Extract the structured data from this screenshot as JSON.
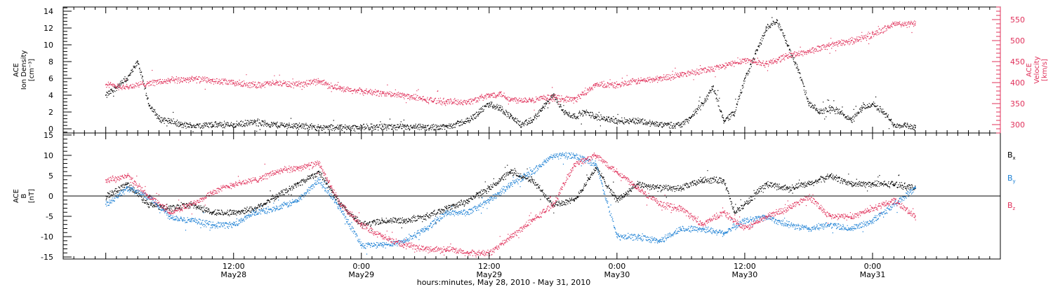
{
  "chart_data": {
    "type": "scatter",
    "x_label": "hours:minutes, May 28, 2010 - May 31, 2010",
    "x_ticks": [
      {
        "t": 12,
        "time": "12:00",
        "day": "May28"
      },
      {
        "t": 24,
        "time": "0:00",
        "day": "May29"
      },
      {
        "t": 36,
        "time": "12:00",
        "day": "May29"
      },
      {
        "t": 48,
        "time": "0:00",
        "day": "May30"
      },
      {
        "t": 60,
        "time": "12:00",
        "day": "May30"
      },
      {
        "t": 72,
        "time": "0:00",
        "day": "May31"
      }
    ],
    "panels": [
      {
        "id": "top",
        "left_axis": {
          "label_lines": [
            "ACE",
            "Ion Density",
            "[cm⁻³]"
          ],
          "range": [
            -0.5,
            14.5
          ],
          "ticks": [
            0,
            2,
            4,
            6,
            8,
            10,
            12,
            14
          ]
        },
        "right_axis": {
          "label_lines": [
            "ACE",
            "Velocity",
            "[km/s]"
          ],
          "range": [
            280,
            580
          ],
          "ticks": [
            300,
            350,
            400,
            450,
            500,
            550
          ],
          "color": "#e0305a"
        },
        "series": [
          {
            "name": "Ion Density",
            "color": "#000000",
            "axis": "left",
            "points": [
              [
                0,
                4
              ],
              [
                1,
                5
              ],
              [
                2,
                6
              ],
              [
                3,
                8
              ],
              [
                4,
                3
              ],
              [
                5,
                1.2
              ],
              [
                6,
                1
              ],
              [
                7,
                0.5
              ],
              [
                8,
                0.4
              ],
              [
                10,
                0.5
              ],
              [
                12,
                0.5
              ],
              [
                14,
                0.8
              ],
              [
                16,
                0.5
              ],
              [
                18,
                0.4
              ],
              [
                20,
                0.2
              ],
              [
                22,
                0.2
              ],
              [
                24,
                0.2
              ],
              [
                26,
                0.3
              ],
              [
                28,
                0.2
              ],
              [
                30,
                0.2
              ],
              [
                32,
                0.3
              ],
              [
                34,
                1
              ],
              [
                35,
                2
              ],
              [
                36,
                3
              ],
              [
                37,
                2.5
              ],
              [
                38,
                1.5
              ],
              [
                39,
                0.5
              ],
              [
                40,
                1
              ],
              [
                41,
                2.5
              ],
              [
                42,
                4
              ],
              [
                43,
                2
              ],
              [
                44,
                1.5
              ],
              [
                45,
                2
              ],
              [
                46,
                1.5
              ],
              [
                47,
                1.2
              ],
              [
                48,
                1
              ],
              [
                50,
                1
              ],
              [
                52,
                0.5
              ],
              [
                54,
                0.5
              ],
              [
                55,
                1.5
              ],
              [
                56,
                3
              ],
              [
                57,
                5
              ],
              [
                58,
                1
              ],
              [
                59,
                2
              ],
              [
                60,
                6
              ],
              [
                61,
                9
              ],
              [
                62,
                12
              ],
              [
                63,
                13
              ],
              [
                64,
                10
              ],
              [
                65,
                7
              ],
              [
                66,
                3
              ],
              [
                67,
                2
              ],
              [
                68,
                2.5
              ],
              [
                69,
                2
              ],
              [
                70,
                1
              ],
              [
                71,
                2.5
              ],
              [
                72,
                3
              ],
              [
                73,
                2
              ],
              [
                74,
                0.5
              ],
              [
                75,
                0.5
              ],
              [
                76,
                0.2
              ]
            ]
          },
          {
            "name": "Velocity",
            "color": "#e0305a",
            "axis": "right",
            "points": [
              [
                0,
                395
              ],
              [
                2,
                390
              ],
              [
                4,
                400
              ],
              [
                6,
                405
              ],
              [
                8,
                410
              ],
              [
                10,
                405
              ],
              [
                12,
                400
              ],
              [
                14,
                395
              ],
              [
                16,
                400
              ],
              [
                18,
                395
              ],
              [
                20,
                405
              ],
              [
                22,
                385
              ],
              [
                24,
                380
              ],
              [
                26,
                375
              ],
              [
                28,
                370
              ],
              [
                30,
                360
              ],
              [
                32,
                355
              ],
              [
                34,
                355
              ],
              [
                36,
                370
              ],
              [
                37,
                375
              ],
              [
                38,
                360
              ],
              [
                40,
                360
              ],
              [
                42,
                365
              ],
              [
                44,
                360
              ],
              [
                46,
                395
              ],
              [
                48,
                395
              ],
              [
                50,
                405
              ],
              [
                52,
                410
              ],
              [
                54,
                420
              ],
              [
                56,
                430
              ],
              [
                58,
                440
              ],
              [
                60,
                455
              ],
              [
                62,
                445
              ],
              [
                64,
                465
              ],
              [
                66,
                475
              ],
              [
                68,
                490
              ],
              [
                70,
                500
              ],
              [
                72,
                515
              ],
              [
                74,
                540
              ],
              [
                76,
                540
              ]
            ]
          }
        ]
      },
      {
        "id": "bottom",
        "left_axis": {
          "label_lines": [
            "ACE",
            "B",
            "[nT]"
          ],
          "range": [
            -15.5,
            15.5
          ],
          "ticks": [
            -15,
            -10,
            -5,
            0,
            5,
            10,
            15
          ]
        },
        "legend": [
          {
            "text": "B",
            "sub": "x",
            "color": "#000000"
          },
          {
            "text": "B",
            "sub": "y",
            "color": "#1a7fd4"
          },
          {
            "text": "B",
            "sub": "z",
            "color": "#e0305a"
          }
        ],
        "series": [
          {
            "name": "Bx",
            "color": "#000000",
            "points": [
              [
                0,
                0
              ],
              [
                2,
                3
              ],
              [
                4,
                -2
              ],
              [
                6,
                -3
              ],
              [
                8,
                -2
              ],
              [
                10,
                -4
              ],
              [
                12,
                -4
              ],
              [
                14,
                -3
              ],
              [
                16,
                0
              ],
              [
                18,
                3
              ],
              [
                20,
                6
              ],
              [
                22,
                -2
              ],
              [
                24,
                -7
              ],
              [
                26,
                -6
              ],
              [
                28,
                -6
              ],
              [
                30,
                -5
              ],
              [
                32,
                -3
              ],
              [
                34,
                -1
              ],
              [
                36,
                2
              ],
              [
                38,
                6
              ],
              [
                40,
                4
              ],
              [
                42,
                -2
              ],
              [
                44,
                -1
              ],
              [
                46,
                7
              ],
              [
                48,
                -1
              ],
              [
                50,
                3
              ],
              [
                52,
                2
              ],
              [
                54,
                2
              ],
              [
                56,
                4
              ],
              [
                58,
                4
              ],
              [
                59,
                -4
              ],
              [
                60,
                -2
              ],
              [
                62,
                3
              ],
              [
                64,
                2
              ],
              [
                66,
                3
              ],
              [
                68,
                5
              ],
              [
                70,
                3
              ],
              [
                72,
                3
              ],
              [
                74,
                3
              ],
              [
                76,
                2
              ]
            ]
          },
          {
            "name": "By",
            "color": "#1a7fd4",
            "points": [
              [
                0,
                -2
              ],
              [
                2,
                2
              ],
              [
                4,
                0
              ],
              [
                6,
                -5
              ],
              [
                8,
                -6
              ],
              [
                10,
                -7
              ],
              [
                12,
                -7
              ],
              [
                14,
                -4
              ],
              [
                16,
                -3
              ],
              [
                18,
                -1
              ],
              [
                20,
                4
              ],
              [
                22,
                -3
              ],
              [
                24,
                -12
              ],
              [
                26,
                -12
              ],
              [
                28,
                -11
              ],
              [
                30,
                -8
              ],
              [
                32,
                -4
              ],
              [
                34,
                -4
              ],
              [
                36,
                -1
              ],
              [
                38,
                3
              ],
              [
                40,
                6
              ],
              [
                42,
                10
              ],
              [
                44,
                10
              ],
              [
                46,
                8
              ],
              [
                48,
                -10
              ],
              [
                50,
                -10
              ],
              [
                52,
                -11
              ],
              [
                54,
                -8
              ],
              [
                56,
                -8
              ],
              [
                58,
                -9
              ],
              [
                60,
                -6
              ],
              [
                62,
                -5
              ],
              [
                64,
                -7
              ],
              [
                66,
                -8
              ],
              [
                68,
                -7
              ],
              [
                70,
                -8
              ],
              [
                72,
                -6
              ],
              [
                74,
                -2
              ],
              [
                76,
                2
              ]
            ]
          },
          {
            "name": "Bz",
            "color": "#e0305a",
            "points": [
              [
                0,
                4
              ],
              [
                2,
                5
              ],
              [
                4,
                0
              ],
              [
                6,
                -4
              ],
              [
                8,
                -2
              ],
              [
                10,
                1
              ],
              [
                12,
                3
              ],
              [
                14,
                4
              ],
              [
                16,
                6
              ],
              [
                18,
                7
              ],
              [
                20,
                8
              ],
              [
                22,
                -2
              ],
              [
                24,
                -7
              ],
              [
                26,
                -10
              ],
              [
                28,
                -12
              ],
              [
                30,
                -13
              ],
              [
                32,
                -13
              ],
              [
                34,
                -14
              ],
              [
                36,
                -14
              ],
              [
                38,
                -10
              ],
              [
                40,
                -6
              ],
              [
                42,
                -2
              ],
              [
                44,
                8
              ],
              [
                46,
                10
              ],
              [
                48,
                6
              ],
              [
                50,
                2
              ],
              [
                52,
                -2
              ],
              [
                54,
                -3
              ],
              [
                56,
                -7
              ],
              [
                58,
                -4
              ],
              [
                60,
                -8
              ],
              [
                62,
                -5
              ],
              [
                64,
                -3
              ],
              [
                66,
                0
              ],
              [
                68,
                -5
              ],
              [
                70,
                -5
              ],
              [
                72,
                -3
              ],
              [
                74,
                -1
              ],
              [
                76,
                -5
              ]
            ]
          }
        ]
      }
    ]
  }
}
